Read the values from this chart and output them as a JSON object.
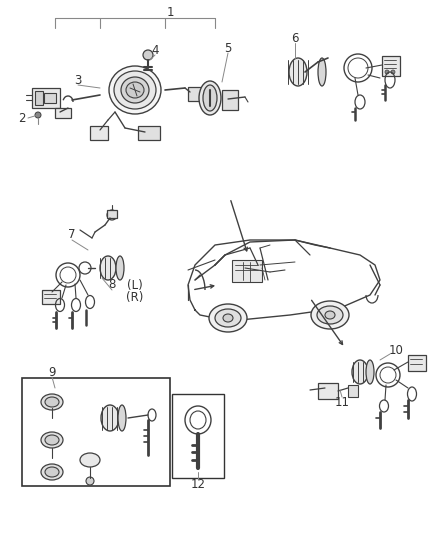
{
  "background_color": "#ffffff",
  "fig_width": 4.38,
  "fig_height": 5.33,
  "dpi": 100,
  "line_color": "#404040",
  "label_color": "#333333",
  "label_fontsize": 8.5,
  "leader_color": "#888888"
}
